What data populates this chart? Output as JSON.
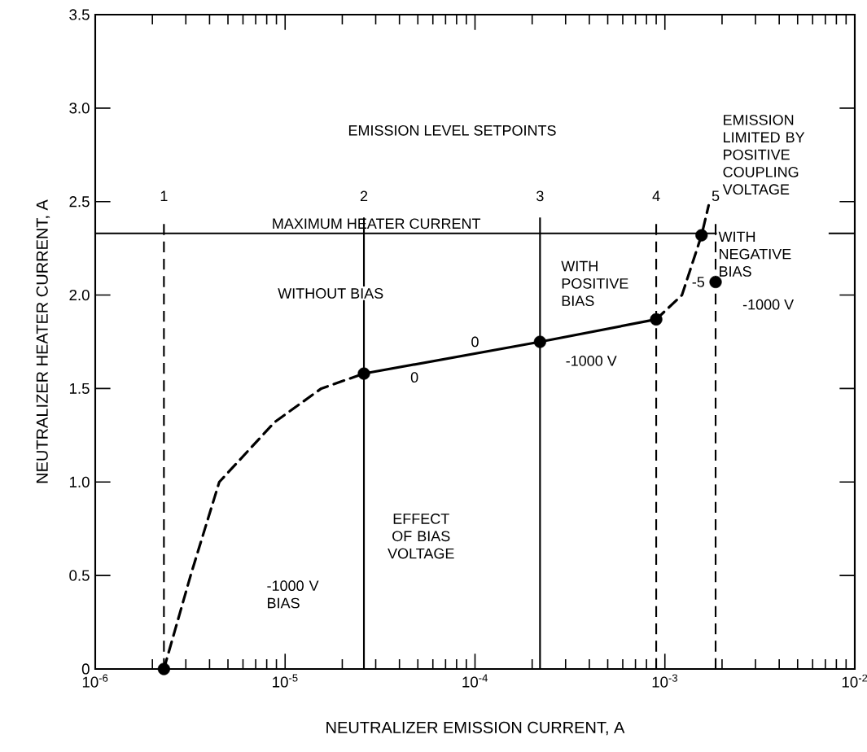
{
  "chart_data": {
    "type": "line",
    "xlabel": "NEUTRALIZER EMISSION CURRENT, A",
    "ylabel": "NEUTRALIZER HEATER CURRENT, A",
    "log": "x",
    "xlim": [
      1e-06,
      0.01
    ],
    "ylim": [
      0,
      3.5
    ],
    "xticks": [
      {
        "value": 1e-06,
        "label": "10$^{-6}$"
      },
      {
        "value": 1e-05,
        "label": "10$^{-5}$"
      },
      {
        "value": 0.0001,
        "label": "10$^{-4}$"
      },
      {
        "value": 0.001,
        "label": "10$^{-3}$"
      },
      {
        "value": 0.01,
        "label": "10$^{-2}$"
      }
    ],
    "yticks": [
      0,
      0.5,
      {
        "value": 1.0,
        "label": "1.0"
      },
      1.5,
      {
        "value": 2.0,
        "label": "2.0"
      },
      2.5,
      {
        "value": 3.0,
        "label": "3.0"
      },
      3.5
    ],
    "series": [
      {
        "color": "#000000",
        "line_style": "dashed",
        "marker": "none",
        "x": [
          2.3e-06,
          3.2e-06,
          4.5e-06,
          8.8e-06,
          1.55e-05,
          2.6e-05
        ],
        "values": [
          0,
          0.51,
          1.0,
          1.32,
          1.5,
          1.58
        ]
      },
      {
        "color": "#000000",
        "line_style": "solid",
        "marker": "none",
        "x": [
          2.6e-05,
          0.00022,
          0.0009
        ],
        "values": [
          1.58,
          1.75,
          1.87
        ]
      },
      {
        "color": "#000000",
        "line_style": "dashed",
        "marker": "none",
        "x": [
          0.0009,
          0.00123,
          0.00156,
          0.0017
        ],
        "values": [
          1.87,
          2.0,
          2.32,
          2.48
        ]
      },
      {
        "type": "scatter",
        "color": "#000000",
        "marker": "circle",
        "x": [
          2.3e-06,
          2.6e-05,
          0.00022,
          0.0009,
          0.00156,
          0.00185
        ],
        "values": [
          0,
          1.58,
          1.75,
          1.87,
          2.32,
          2.07
        ]
      }
    ],
    "ref_lines": [
      {
        "axis": "y",
        "value": 2.33,
        "label": "MAXIMUM HEATER CURRENT",
        "line_style": "solid"
      },
      {
        "axis": "x",
        "value": 2.3e-06,
        "line_style": "dashed"
      },
      {
        "axis": "x",
        "value": 2.6e-05,
        "line_style": "solid"
      },
      {
        "axis": "x",
        "value": 0.00022,
        "line_style": "solid"
      },
      {
        "axis": "x",
        "value": 0.0009,
        "line_style": "dashed"
      },
      {
        "axis": "x",
        "value": 0.00185,
        "line_style": "dashed"
      }
    ],
    "annotations": [
      "EMISSION LEVEL SETPOINTS",
      "EMISSION LIMITED BY POSITIVE COUPLING VOLTAGE",
      "WITH NEGATIVE BIAS",
      "WITH POSITIVE BIAS",
      "WITHOUT BIAS",
      "EFFECT OF BIAS VOLTAGE",
      "-1000 V BIAS",
      "-1000 V",
      "-1000 V",
      {
        "text": "0",
        "x": 4.8e-05,
        "y": 1.56
      },
      {
        "text": "0",
        "x": 0.0001,
        "y": 1.75
      },
      {
        "text": "-5",
        "x": 0.0015,
        "y": 2.07
      },
      {
        "text": "1",
        "x": 2.3e-06,
        "y": 2.53
      },
      {
        "text": "2",
        "x": 2.6e-05,
        "y": 2.53
      },
      {
        "text": "3",
        "x": 0.00022,
        "y": 2.53
      },
      {
        "text": "4",
        "x": 0.0009,
        "y": 2.53
      },
      {
        "text": "5",
        "x": 0.00185,
        "y": 2.53
      }
    ]
  }
}
